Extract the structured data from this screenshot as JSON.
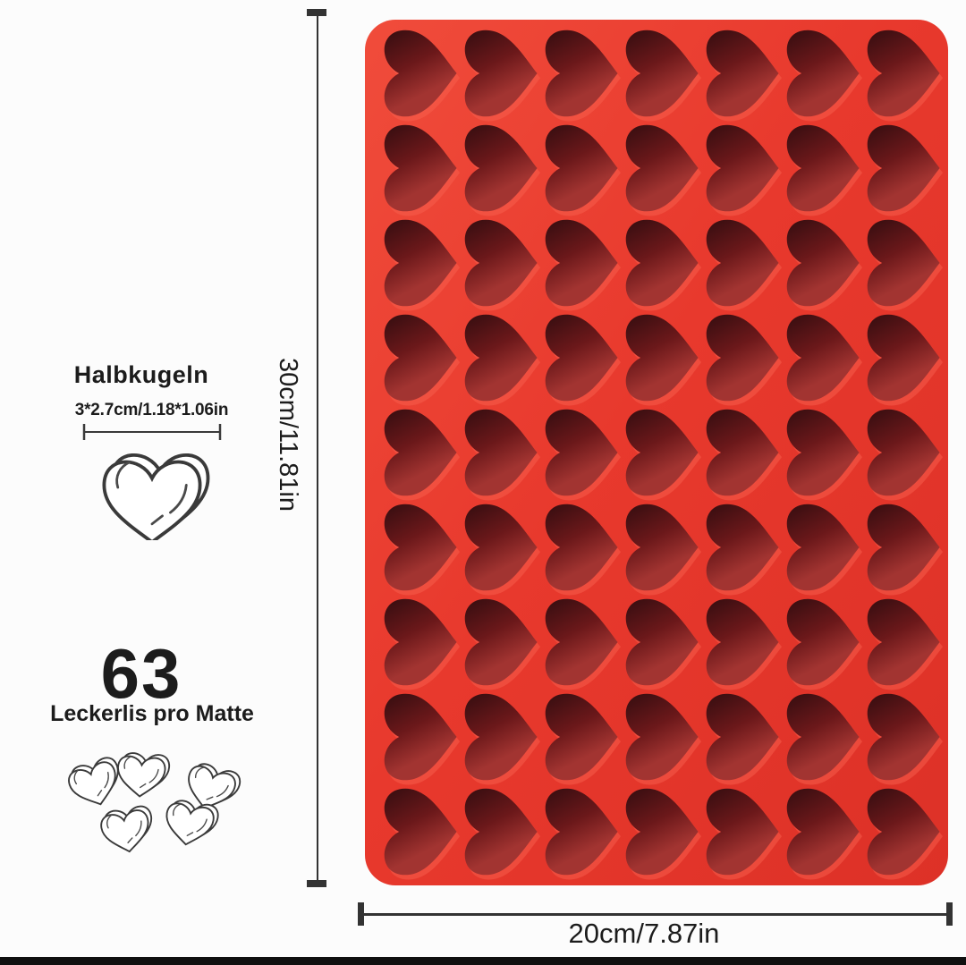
{
  "colors": {
    "background": "#fcfcfc",
    "ink": "#1c1c1c",
    "line": "#333333",
    "bottom_bar": "#101010",
    "mold_red": "#e8392d",
    "mold_red_light": "#f04c3b",
    "mold_red_deep": "#dd3127",
    "cavity_dark": "#390e11",
    "cavity_mid": "#6b181a",
    "cavity_low": "#a23431",
    "rim_highlight": "#f8604e"
  },
  "annotations": {
    "cell_title": "Halbkugeln",
    "cell_size": "3*2.7cm/1.18*1.06in",
    "count": "63",
    "count_caption": "Leckerlis pro Matte",
    "height_label": "30cm/11.81in",
    "width_label": "20cm/7.87in"
  },
  "mold": {
    "rows": 9,
    "cols": 7,
    "total_cavities": 63,
    "cavity_orientation": "point-right"
  },
  "illustration": {
    "small_hearts": 5
  }
}
